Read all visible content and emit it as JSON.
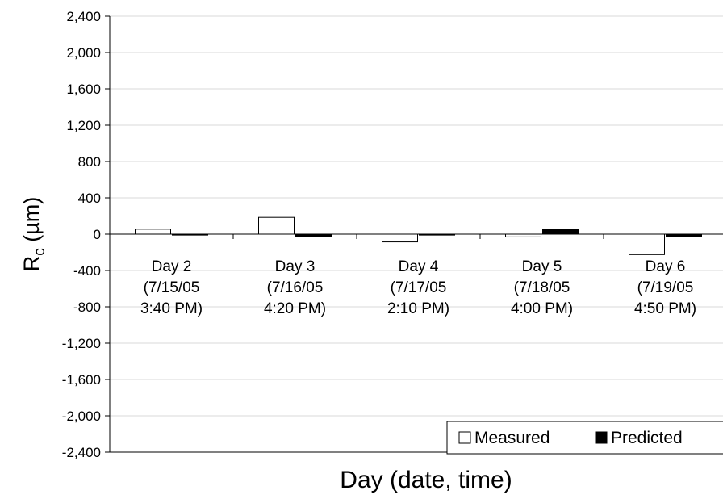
{
  "chart_data": {
    "type": "bar",
    "categories": [
      [
        "Day 2",
        "(7/15/05",
        "3:40 PM)"
      ],
      [
        "Day 3",
        "(7/16/05",
        "4:20 PM)"
      ],
      [
        "Day 4",
        "(7/17/05",
        "2:10 PM)"
      ],
      [
        "Day 5",
        "(7/18/05",
        "4:00 PM)"
      ],
      [
        "Day 6",
        "(7/19/05",
        "4:50 PM)"
      ]
    ],
    "series": [
      {
        "name": "Measured",
        "color": "#ffffff",
        "values": [
          55,
          185,
          -85,
          -30,
          -225
        ]
      },
      {
        "name": "Predicted",
        "color": "#000000",
        "values": [
          -10,
          -30,
          -10,
          50,
          -25
        ]
      }
    ],
    "title": "",
    "xlabel": "Day (date, time)",
    "ylabel": {
      "main": "R",
      "sub": "c",
      "unit": " (µm)"
    },
    "ylim": [
      -2400,
      2400
    ],
    "yticks": [
      2400,
      2000,
      1600,
      1200,
      800,
      400,
      0,
      -400,
      -800,
      -1200,
      -1600,
      -2000,
      -2400
    ],
    "ytick_labels": [
      "2,400",
      "2,000",
      "1,600",
      "1,200",
      "800",
      "400",
      "0",
      "-400",
      "-800",
      "-1,200",
      "-1,600",
      "-2,000",
      "-2,400"
    ],
    "grid": true,
    "legend_position": "bottom-right"
  }
}
